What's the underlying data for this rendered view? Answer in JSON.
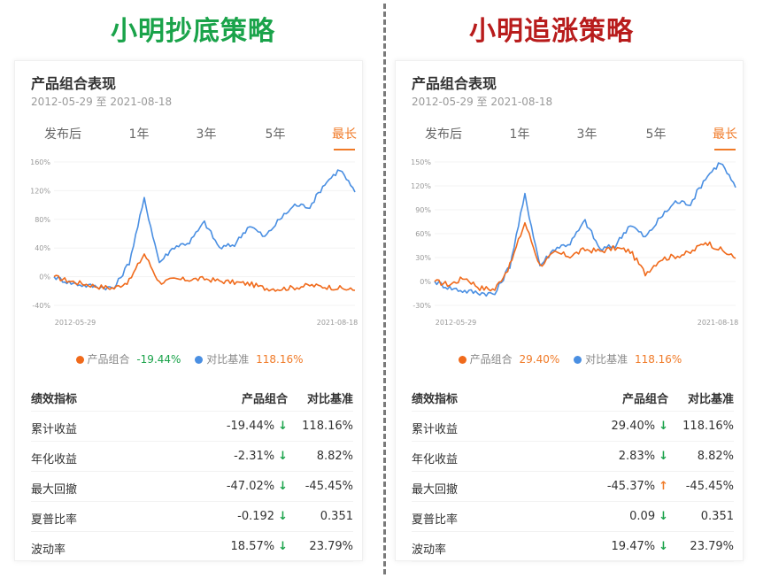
{
  "left": {
    "heading": "小明抄底策略",
    "heading_color": "#1aa34a",
    "panel_title": "产品组合表现",
    "date_range": "2012-05-29 至 2021-08-18",
    "tabs": [
      "发布后",
      "1年",
      "3年",
      "5年",
      "最长"
    ],
    "active_tab": "最长",
    "legend": {
      "product_label": "产品组合",
      "product_value": "-19.44%",
      "product_value_color": "#1aa34a",
      "benchmark_label": "对比基准",
      "benchmark_value": "118.16%",
      "benchmark_value_color": "#f07a27"
    },
    "table": {
      "headers": [
        "绩效指标",
        "产品组合",
        "对比基准"
      ],
      "rows": [
        {
          "name": "累计收益",
          "product": "-19.44%",
          "arrow": "down",
          "benchmark": "118.16%"
        },
        {
          "name": "年化收益",
          "product": "-2.31%",
          "arrow": "down",
          "benchmark": "8.82%"
        },
        {
          "name": "最大回撤",
          "product": "-47.02%",
          "arrow": "down",
          "benchmark": "-45.45%"
        },
        {
          "name": "夏普比率",
          "product": "-0.192",
          "arrow": "down",
          "benchmark": "0.351"
        },
        {
          "name": "波动率",
          "product": "18.57%",
          "arrow": "down",
          "benchmark": "23.79%"
        }
      ]
    }
  },
  "right": {
    "heading": "小明追涨策略",
    "heading_color": "#b81c1c",
    "panel_title": "产品组合表现",
    "date_range": "2012-05-29 至 2021-08-18",
    "tabs": [
      "发布后",
      "1年",
      "3年",
      "5年",
      "最长"
    ],
    "active_tab": "最长",
    "legend": {
      "product_label": "产品组合",
      "product_value": "29.40%",
      "product_value_color": "#f07a27",
      "benchmark_label": "对比基准",
      "benchmark_value": "118.16%",
      "benchmark_value_color": "#f07a27"
    },
    "table": {
      "headers": [
        "绩效指标",
        "产品组合",
        "对比基准"
      ],
      "rows": [
        {
          "name": "累计收益",
          "product": "29.40%",
          "arrow": "down",
          "benchmark": "118.16%"
        },
        {
          "name": "年化收益",
          "product": "2.83%",
          "arrow": "down",
          "benchmark": "8.82%"
        },
        {
          "name": "最大回撤",
          "product": "-45.37%",
          "arrow": "up",
          "benchmark": "-45.45%"
        },
        {
          "name": "夏普比率",
          "product": "0.09",
          "arrow": "down",
          "benchmark": "0.351"
        },
        {
          "name": "波动率",
          "product": "19.47%",
          "arrow": "down",
          "benchmark": "23.79%"
        }
      ]
    }
  },
  "colors": {
    "product_series": "#f06a1b",
    "benchmark_series": "#4a8fe2",
    "arrow_down": "#1aa34a",
    "arrow_up": "#f07a27"
  },
  "chart_data": [
    {
      "type": "line",
      "x_start": "2012-05-29",
      "x_end": "2021-08-18",
      "y_ticks": [
        "160%",
        "120%",
        "80%",
        "40%",
        "0%",
        "-40%"
      ],
      "ylim": [
        -40,
        160
      ],
      "x_tick_labels": [
        "2012-05-29",
        "2021-08-18"
      ],
      "series": [
        {
          "name": "产品组合",
          "values": [
            0,
            -6,
            -10,
            -14,
            -16,
            -6,
            32,
            -8,
            -4,
            -4,
            -3,
            -6,
            -8,
            -10,
            -16,
            -17,
            -15,
            -12,
            -14,
            -16,
            -19
          ]
        },
        {
          "name": "对比基准",
          "values": [
            0,
            -8,
            -12,
            -14,
            -16,
            20,
            108,
            20,
            42,
            48,
            76,
            40,
            45,
            72,
            55,
            80,
            100,
            98,
            130,
            150,
            118
          ]
        }
      ]
    },
    {
      "type": "line",
      "x_start": "2012-05-29",
      "x_end": "2021-08-18",
      "y_ticks": [
        "150%",
        "120%",
        "90%",
        "60%",
        "30%",
        "0%",
        "-30%"
      ],
      "ylim": [
        -30,
        150
      ],
      "x_tick_labels": [
        "2012-05-29",
        "2021-08-18"
      ],
      "series": [
        {
          "name": "产品组合",
          "values": [
            0,
            -4,
            5,
            -8,
            -10,
            20,
            74,
            20,
            36,
            32,
            40,
            38,
            42,
            38,
            10,
            28,
            32,
            36,
            50,
            40,
            29
          ]
        },
        {
          "name": "对比基准",
          "values": [
            0,
            -8,
            -12,
            -14,
            -16,
            20,
            108,
            20,
            42,
            48,
            76,
            40,
            45,
            72,
            55,
            80,
            100,
            98,
            130,
            150,
            118
          ]
        }
      ]
    }
  ]
}
